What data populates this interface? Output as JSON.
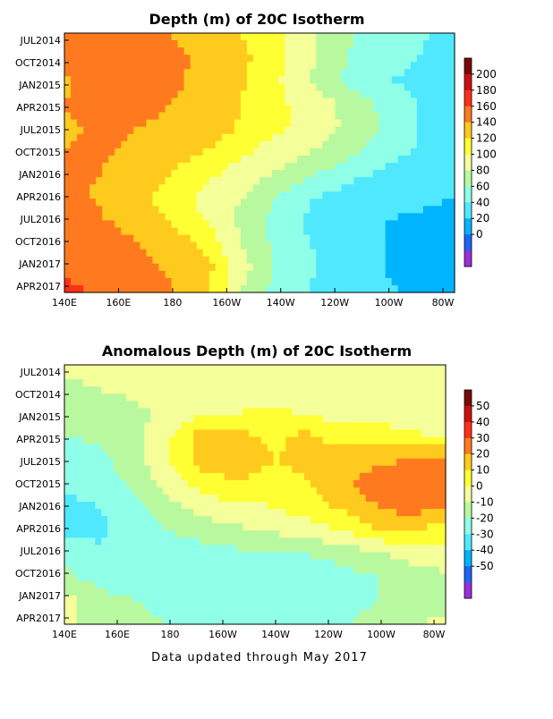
{
  "chart_data": [
    {
      "type": "heatmap",
      "title": "Depth (m) of 20C Isotherm",
      "x_ticks": [
        "140E",
        "160E",
        "180",
        "160W",
        "140W",
        "120W",
        "100W",
        "80W"
      ],
      "y_ticks": [
        "JUL2014",
        "OCT2014",
        "JAN2015",
        "APR2015",
        "JUL2015",
        "OCT2015",
        "JAN2016",
        "APR2016",
        "JUL2016",
        "OCT2016",
        "JAN2017",
        "APR2017"
      ],
      "colorbar_labels": [
        "200",
        "180",
        "160",
        "140",
        "120",
        "100",
        "80",
        "60",
        "40",
        "20",
        "0"
      ],
      "levels": [
        -10,
        0,
        20,
        40,
        60,
        80,
        100,
        120,
        140,
        160,
        180,
        200,
        220
      ],
      "colors": [
        "#9b2ed8",
        "#1e66f5",
        "#00b4ff",
        "#4fe8ff",
        "#8fffe8",
        "#b8f9a0",
        "#f4ff9a",
        "#ffff33",
        "#ffca1e",
        "#ff7a1e",
        "#ff3018",
        "#cc1010",
        "#7a0a0a"
      ],
      "longitude_range": [
        "140E",
        "80W"
      ],
      "time_range": [
        "JUL2014",
        "MAY2017"
      ],
      "values": [
        [
          165,
          170,
          168,
          160,
          150,
          140,
          125,
          100,
          82,
          75,
          62,
          55
        ],
        [
          170,
          175,
          172,
          165,
          155,
          145,
          128,
          102,
          80,
          70,
          60,
          52
        ],
        [
          158,
          168,
          170,
          166,
          152,
          142,
          122,
          98,
          75,
          62,
          55,
          48
        ],
        [
          160,
          165,
          168,
          160,
          150,
          140,
          125,
          110,
          95,
          75,
          58,
          45
        ],
        [
          158,
          162,
          160,
          155,
          150,
          138,
          125,
          112,
          96,
          78,
          60,
          48
        ],
        [
          160,
          162,
          158,
          150,
          140,
          125,
          110,
          100,
          88,
          70,
          58,
          50
        ],
        [
          162,
          160,
          150,
          140,
          125,
          110,
          98,
          82,
          66,
          55,
          48,
          42
        ],
        [
          165,
          158,
          148,
          130,
          112,
          100,
          80,
          60,
          50,
          45,
          42,
          40
        ],
        [
          168,
          162,
          155,
          140,
          120,
          95,
          70,
          55,
          45,
          40,
          38,
          36
        ],
        [
          172,
          168,
          162,
          152,
          135,
          100,
          75,
          60,
          48,
          40,
          36,
          35
        ],
        [
          176,
          172,
          166,
          158,
          148,
          108,
          78,
          62,
          50,
          40,
          36,
          34
        ],
        [
          185,
          178,
          170,
          162,
          140,
          100,
          70,
          58,
          48,
          42,
          38,
          36
        ]
      ]
    },
    {
      "type": "heatmap",
      "title": "Anomalous Depth (m) of 20C Isotherm",
      "x_ticks": [
        "140E",
        "160E",
        "180",
        "160W",
        "140W",
        "120W",
        "100W",
        "80W"
      ],
      "y_ticks": [
        "JUL2014",
        "OCT2014",
        "JAN2015",
        "APR2015",
        "JUL2015",
        "OCT2015",
        "JAN2016",
        "APR2016",
        "JUL2016",
        "OCT2016",
        "JAN2017",
        "APR2017"
      ],
      "colorbar_labels": [
        "50",
        "40",
        "30",
        "20",
        "10",
        "0",
        "-10",
        "-20",
        "-30",
        "-40",
        "-50"
      ],
      "levels": [
        -60,
        -50,
        -40,
        -30,
        -20,
        -10,
        0,
        10,
        20,
        30,
        40,
        50,
        60
      ],
      "colors": [
        "#9b2ed8",
        "#1e66f5",
        "#00b4ff",
        "#4fe8ff",
        "#8fffe8",
        "#b8f9a0",
        "#f4ff9a",
        "#ffff33",
        "#ffca1e",
        "#ff7a1e",
        "#ff3018",
        "#cc1010",
        "#7a0a0a"
      ],
      "longitude_range": [
        "140E",
        "80W"
      ],
      "time_range": [
        "JUL2014",
        "MAY2017"
      ],
      "values": [
        [
          2,
          5,
          3,
          6,
          4,
          2,
          5,
          3,
          4,
          2,
          3,
          1
        ],
        [
          -2,
          0,
          2,
          4,
          2,
          0,
          5,
          6,
          3,
          1,
          2,
          0
        ],
        [
          -6,
          -3,
          -2,
          2,
          6,
          10,
          12,
          8,
          5,
          3,
          2,
          1
        ],
        [
          -10,
          -8,
          -4,
          8,
          25,
          22,
          18,
          22,
          15,
          18,
          12,
          8
        ],
        [
          -15,
          -12,
          -5,
          10,
          24,
          30,
          20,
          22,
          25,
          28,
          30,
          32
        ],
        [
          -18,
          -16,
          -8,
          6,
          15,
          18,
          16,
          20,
          28,
          35,
          38,
          34
        ],
        [
          -22,
          -20,
          -14,
          -4,
          5,
          8,
          10,
          15,
          22,
          30,
          35,
          30
        ],
        [
          -25,
          -22,
          -16,
          -10,
          -5,
          -2,
          2,
          5,
          10,
          20,
          22,
          15
        ],
        [
          -12,
          -18,
          -18,
          -16,
          -14,
          -12,
          -12,
          -10,
          -6,
          -2,
          4,
          6
        ],
        [
          -8,
          -14,
          -16,
          -16,
          -18,
          -20,
          -20,
          -16,
          -14,
          -10,
          -6,
          -2
        ],
        [
          5,
          -6,
          -10,
          -12,
          -14,
          -16,
          -20,
          -18,
          -14,
          -10,
          -8,
          -4
        ],
        [
          2,
          -4,
          -8,
          -10,
          -12,
          -14,
          -16,
          -16,
          -12,
          -6,
          -2,
          4
        ]
      ]
    }
  ],
  "footer": "Data updated through May 2017"
}
